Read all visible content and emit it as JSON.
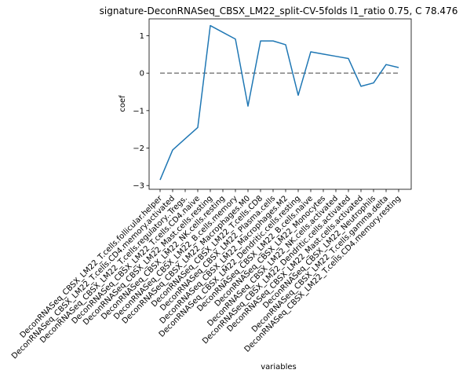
{
  "chart_data": {
    "type": "line",
    "title": "signature-DeconRNASeq_CBSX_LM22_split-CV-5folds l1_ratio 0.75, C 78.476",
    "xlabel": "variables",
    "ylabel": "coef",
    "ylim": [
      -3.1,
      1.45
    ],
    "yticks": [
      -3,
      -2,
      -1,
      0,
      1
    ],
    "ytick_labels": [
      "−3",
      "−2",
      "−1",
      "0",
      "1"
    ],
    "grid": false,
    "categories": [
      "DeconRNASeq_CBSX_LM22_T.cells.follicular.helper",
      "DeconRNASeq_CBSX_LM22_T.cells.CD4.memory.activated",
      "DeconRNASeq_CBSX_LM22_T.cells.regulatory..Tregs.",
      "DeconRNASeq_CBSX_LM22_T.cells.CD4.naive",
      "DeconRNASeq_CBSX_LM22_Mast.cells.resting",
      "DeconRNASeq_CBSX_LM22_NK.cells.resting",
      "DeconRNASeq_CBSX_LM22_B.cells.memory",
      "DeconRNASeq_CBSX_LM22_Macrophages.M0",
      "DeconRNASeq_CBSX_LM22_T.cells.CD8",
      "DeconRNASeq_CBSX_LM22_Plasma.cells",
      "DeconRNASeq_CBSX_LM22_Macrophages.M2",
      "DeconRNASeq_CBSX_LM22_Dendritic.cells.resting",
      "DeconRNASeq_CBSX_LM22_B.cells.naive",
      "DeconRNASeq_CBSX_LM22_Monocytes",
      "DeconRNASeq_CBSX_LM22_NK.cells.activated",
      "DeconRNASeq_CBSX_LM22_Dendritic.cells.activated",
      "DeconRNASeq_CBSX_LM22_Mast.cells.activated",
      "DeconRNASeq_CBSX_LM22_Neutrophils",
      "DeconRNASeq_CBSX_LM22_T.cells.gamma.delta",
      "DeconRNASeq_CBSX_LM22_T.cells.CD4.memory.resting"
    ],
    "series": [
      {
        "values": [
          -2.85,
          -2.05,
          -1.75,
          -1.45,
          1.27,
          1.09,
          0.91,
          -0.88,
          0.86,
          0.86,
          0.76,
          -0.59,
          0.57,
          0.51,
          0.45,
          0.39,
          -0.35,
          -0.26,
          0.23,
          0.15
        ],
        "color": "#1f77b4"
      }
    ],
    "reference_line": {
      "y": 0,
      "style": "dashed",
      "color": "#808080"
    }
  }
}
